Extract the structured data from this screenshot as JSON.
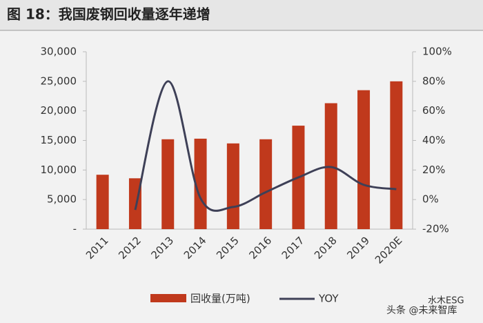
{
  "chart_data": {
    "type": "bar-line",
    "title": "图 18：我国废钢回收量逐年递增",
    "categories": [
      "2011",
      "2012",
      "2013",
      "2014",
      "2015",
      "2016",
      "2017",
      "2018",
      "2019",
      "2020E"
    ],
    "series": [
      {
        "name": "回收量(万吨)",
        "type": "bar",
        "color": "#c0391c",
        "values": [
          9200,
          8600,
          15200,
          15300,
          14500,
          15200,
          17500,
          21300,
          23500,
          25000
        ]
      },
      {
        "name": "YOY",
        "type": "line",
        "axis": "y2",
        "color": "#3e4057",
        "values": [
          null,
          -7,
          80,
          1,
          -5,
          5,
          15,
          22,
          10,
          7
        ]
      }
    ],
    "ylim": [
      0,
      30000
    ],
    "yticks": [
      {
        "value": 0,
        "label": "-"
      },
      {
        "value": 5000,
        "label": "5,000"
      },
      {
        "value": 10000,
        "label": "10,000"
      },
      {
        "value": 15000,
        "label": "15,000"
      },
      {
        "value": 20000,
        "label": "20,000"
      },
      {
        "value": 25000,
        "label": "25,000"
      },
      {
        "value": 30000,
        "label": "30,000"
      }
    ],
    "y2lim": [
      -20,
      100
    ],
    "y2ticks": [
      {
        "value": -20,
        "label": "-20%"
      },
      {
        "value": 0,
        "label": "0%"
      },
      {
        "value": 20,
        "label": "20%"
      },
      {
        "value": 40,
        "label": "40%"
      },
      {
        "value": 60,
        "label": "60%"
      },
      {
        "value": 80,
        "label": "80%"
      },
      {
        "value": 100,
        "label": "100%"
      }
    ],
    "legend": "bottom"
  },
  "watermarks": [
    "水木ESG",
    "头条 @未来智库"
  ]
}
